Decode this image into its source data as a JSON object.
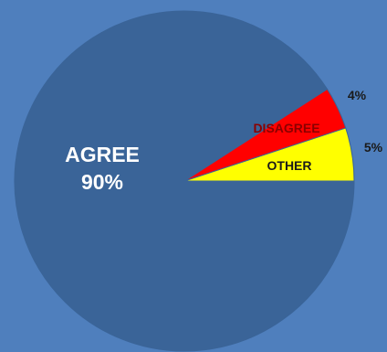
{
  "chart_data": {
    "type": "pie",
    "title": "",
    "legend": "none",
    "start_angle_deg": 0,
    "direction": "counterclockwise",
    "slices": [
      {
        "category": "OTHER",
        "value": 5,
        "value_label": "5%",
        "color": "#ffff00",
        "label_color": "#1a1a1a",
        "value_label_color": "#1a1a1a"
      },
      {
        "category": "DISAGREE",
        "value": 4,
        "value_label": "4%",
        "color": "#ff0000",
        "label_color": "#8b0000",
        "value_label_color": "#1a1a1a"
      },
      {
        "category": "AGREE",
        "value": 90,
        "value_label": "90%",
        "color": "#3a6498",
        "label_color": "#ffffff",
        "value_label_color": "#ffffff"
      }
    ],
    "background_color": "#4f7fbd",
    "slice_edge_color": "#3a6498"
  }
}
